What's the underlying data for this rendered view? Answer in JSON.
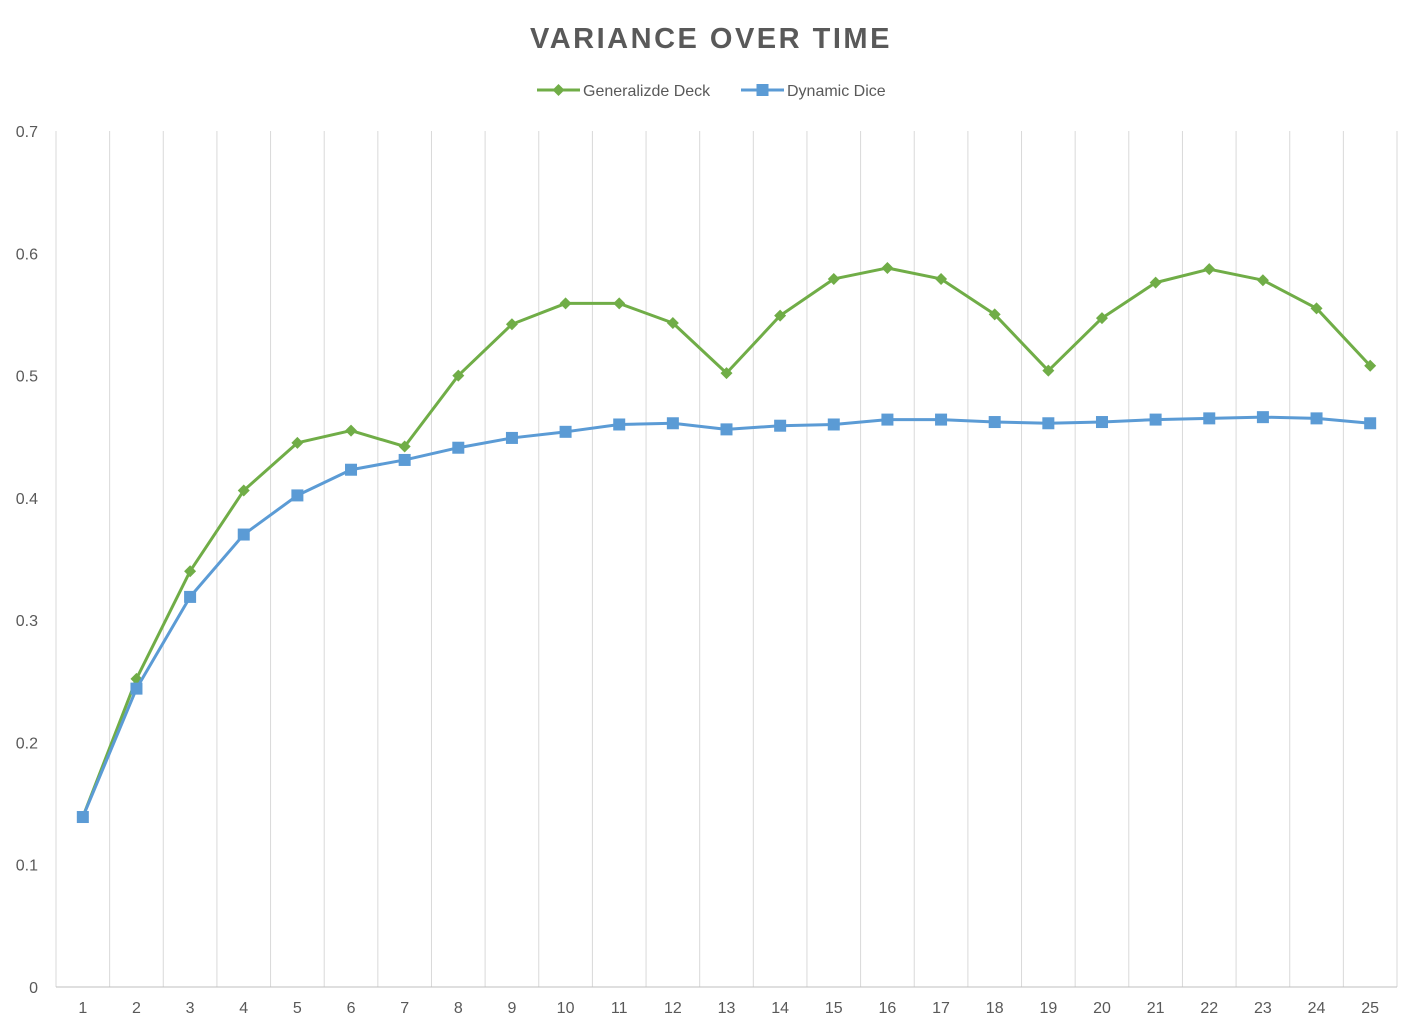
{
  "chart_data": {
    "type": "line",
    "title": "VARIANCE OVER TIME",
    "xlabel": "",
    "ylabel": "",
    "x": [
      1,
      2,
      3,
      4,
      5,
      6,
      7,
      8,
      9,
      10,
      11,
      12,
      13,
      14,
      15,
      16,
      17,
      18,
      19,
      20,
      21,
      22,
      23,
      24,
      25
    ],
    "ylim": [
      0,
      0.7
    ],
    "yticks": [
      "0",
      "0.1",
      "0.2",
      "0.3",
      "0.4",
      "0.5",
      "0.6",
      "0.7"
    ],
    "grid": "vertical",
    "legend_position": "top",
    "series": [
      {
        "name": "Generalizde Deck",
        "color": "#70ad47",
        "marker": "diamond",
        "values": [
          0.139,
          0.252,
          0.34,
          0.406,
          0.445,
          0.455,
          0.442,
          0.5,
          0.542,
          0.559,
          0.559,
          0.543,
          0.502,
          0.549,
          0.579,
          0.588,
          0.579,
          0.55,
          0.504,
          0.547,
          0.576,
          0.587,
          0.578,
          0.555,
          0.508
        ]
      },
      {
        "name": "Dynamic Dice",
        "color": "#5b9bd5",
        "marker": "square",
        "values": [
          0.139,
          0.244,
          0.319,
          0.37,
          0.402,
          0.423,
          0.431,
          0.441,
          0.449,
          0.454,
          0.46,
          0.461,
          0.456,
          0.459,
          0.46,
          0.464,
          0.464,
          0.462,
          0.461,
          0.462,
          0.464,
          0.465,
          0.466,
          0.465,
          0.461
        ]
      }
    ]
  }
}
